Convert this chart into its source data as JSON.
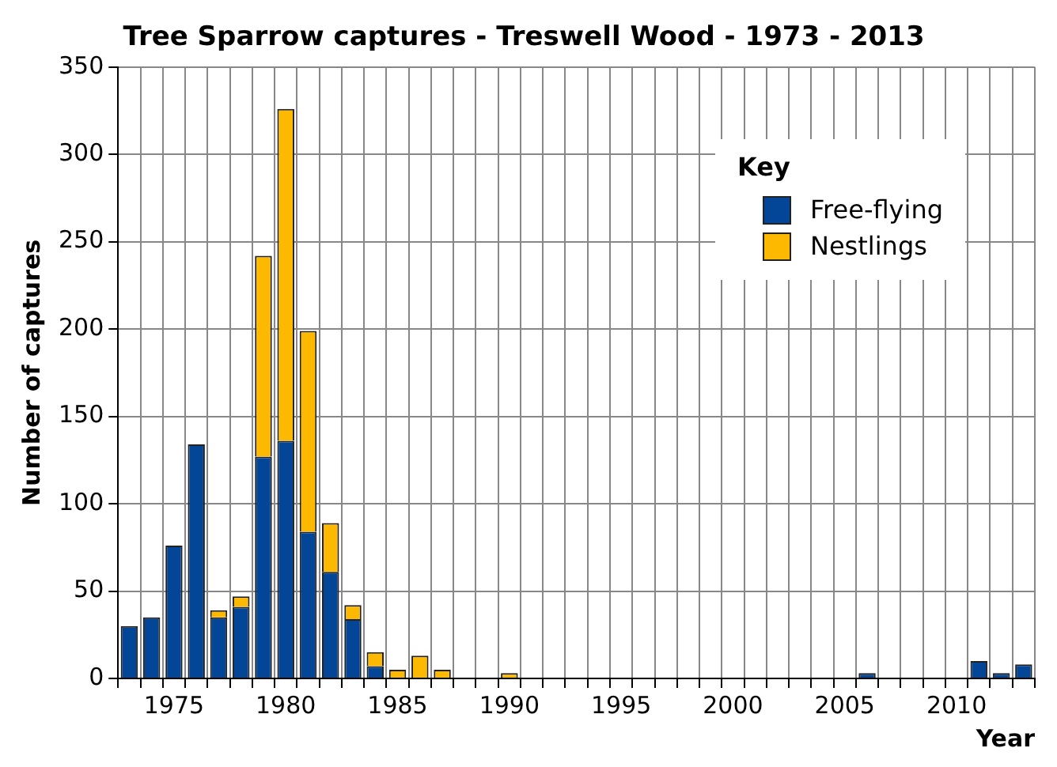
{
  "chart_data": {
    "type": "bar",
    "title": "Tree Sparrow captures - Treswell Wood - 1973 - 2013",
    "xlabel": "Year",
    "ylabel": "Number of captures",
    "legend_title": "Key",
    "categories": [
      null,
      null,
      "1975",
      null,
      null,
      null,
      null,
      "1980",
      null,
      null,
      null,
      null,
      "1985",
      null,
      null,
      null,
      null,
      "1990",
      null,
      null,
      null,
      null,
      "1995",
      null,
      null,
      null,
      null,
      "2000",
      null,
      null,
      null,
      null,
      "2005",
      null,
      null,
      null,
      null,
      "2010",
      null,
      null,
      null
    ],
    "series": [
      {
        "name": "Free-flying",
        "color": "#034597",
        "values": [
          30,
          35,
          76,
          134,
          35,
          41,
          127,
          136,
          84,
          61,
          34,
          7,
          0,
          0,
          0,
          0,
          0,
          0,
          0,
          0,
          0,
          0,
          0,
          0,
          0,
          0,
          0,
          0,
          0,
          0,
          0,
          0,
          0,
          3,
          0,
          0,
          0,
          0,
          10,
          3,
          8
        ]
      },
      {
        "name": "Nestlings",
        "color": "#fdb900",
        "values": [
          0,
          0,
          0,
          0,
          4,
          6,
          115,
          190,
          115,
          28,
          8,
          8,
          5,
          13,
          5,
          0,
          0,
          3,
          0,
          0,
          0,
          0,
          0,
          0,
          0,
          0,
          0,
          0,
          0,
          0,
          0,
          0,
          0,
          0,
          0,
          0,
          0,
          0,
          0,
          0,
          0
        ]
      }
    ],
    "stacked": true,
    "ylim": [
      0,
      350
    ],
    "yticks": [
      0,
      50,
      100,
      150,
      200,
      250,
      300,
      350
    ],
    "grid": true,
    "legend": "top right"
  }
}
